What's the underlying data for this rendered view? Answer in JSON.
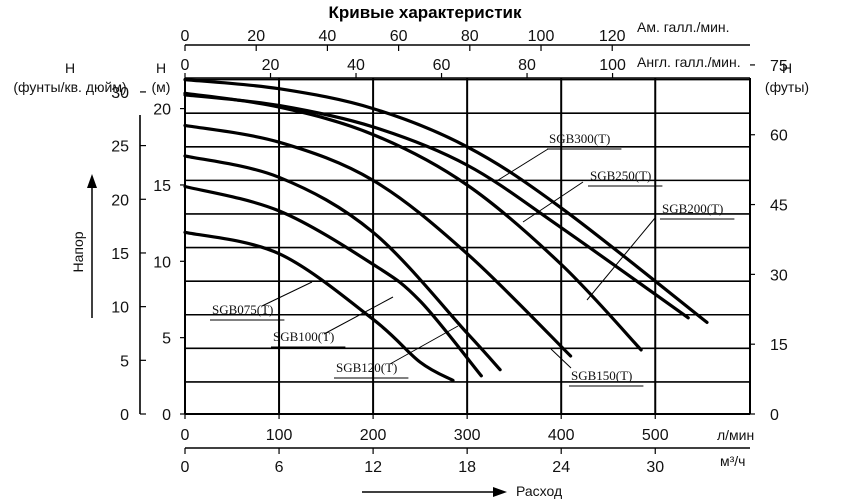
{
  "chart_data": {
    "type": "line",
    "title": "Кривые характеристик",
    "top_axes": [
      {
        "label": "Ам. галл./мин.",
        "ticks": [
          "0",
          "20",
          "40",
          "60",
          "80",
          "100",
          "120"
        ],
        "values": [
          0,
          20,
          40,
          60,
          80,
          100,
          120
        ]
      },
      {
        "label": "Англ. галл./мин.",
        "ticks": [
          "0",
          "20",
          "40",
          "60",
          "80",
          "100"
        ],
        "values": [
          0,
          20,
          40,
          60,
          80,
          100
        ]
      }
    ],
    "bottom_axes": [
      {
        "label": "л/мин",
        "ticks": [
          "0",
          "100",
          "200",
          "300",
          "400",
          "500"
        ],
        "values": [
          0,
          100,
          200,
          300,
          400,
          500
        ]
      },
      {
        "label": "м³/ч",
        "ticks": [
          "0",
          "6",
          "12",
          "18",
          "24",
          "30"
        ],
        "values": [
          0,
          6,
          12,
          18,
          24,
          30
        ]
      }
    ],
    "left_axes": [
      {
        "label_top": "H",
        "label_bottom": "(фунты/кв. дюйм)",
        "ticks": [
          "0",
          "5",
          "10",
          "15",
          "20",
          "25",
          "30"
        ],
        "values": [
          0,
          5,
          10,
          15,
          20,
          25,
          30
        ]
      },
      {
        "label_top": "H",
        "label_bottom": "(м)",
        "ticks": [
          "0",
          "5",
          "10",
          "15",
          "20"
        ],
        "values": [
          0,
          5,
          10,
          15,
          20
        ]
      }
    ],
    "right_axis": {
      "label_top": "H",
      "label_bottom": "(футы)",
      "ticks": [
        "0",
        "15",
        "30",
        "45",
        "60",
        "75"
      ],
      "values": [
        0,
        15,
        30,
        45,
        60,
        75
      ]
    },
    "ylabel": "Напор",
    "xlabel": "Расход",
    "xlim": [
      0,
      600
    ],
    "ylim": [
      0,
      22
    ],
    "grid": true,
    "series": [
      {
        "name": "SGB075(T)",
        "x": [
          0,
          100,
          200,
          250,
          285
        ],
        "y": [
          11.9,
          10.5,
          6.2,
          3.4,
          2.2
        ]
      },
      {
        "name": "SGB100(T)",
        "x": [
          0,
          100,
          200,
          250,
          315
        ],
        "y": [
          14.9,
          13.3,
          9.8,
          7.4,
          2.5
        ]
      },
      {
        "name": "SGB120(T)",
        "x": [
          0,
          100,
          200,
          300,
          335
        ],
        "y": [
          16.9,
          15.5,
          11.9,
          5.3,
          2.9
        ]
      },
      {
        "name": "SGB150(T)",
        "x": [
          0,
          100,
          200,
          300,
          410
        ],
        "y": [
          18.9,
          17.8,
          15.3,
          10.5,
          3.8
        ]
      },
      {
        "name": "SGB200(T)",
        "x": [
          0,
          100,
          200,
          300,
          400,
          485
        ],
        "y": [
          21.0,
          20.1,
          18.3,
          15.0,
          9.8,
          4.2
        ]
      },
      {
        "name": "SGB250(T)",
        "x": [
          0,
          100,
          200,
          300,
          400,
          535
        ],
        "y": [
          20.9,
          20.2,
          18.8,
          16.3,
          12.2,
          6.3
        ]
      },
      {
        "name": "SGB300(T)",
        "x": [
          0,
          100,
          200,
          300,
          400,
          555
        ],
        "y": [
          21.9,
          21.3,
          20.0,
          17.5,
          13.5,
          6.0
        ]
      }
    ]
  }
}
